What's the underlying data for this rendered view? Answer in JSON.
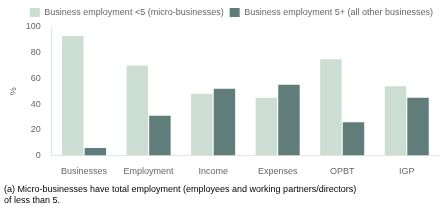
{
  "chart_data": {
    "type": "bar",
    "categories": [
      "Businesses",
      "Employment",
      "Income",
      "Expenses",
      "OPBT",
      "IGP"
    ],
    "series": [
      {
        "name": "Business employment <5 (micro-businesses)",
        "color": "#ccddd1",
        "values": [
          93,
          70,
          48,
          45,
          75,
          54
        ]
      },
      {
        "name": "Business employment 5+ (all other businesses)",
        "color": "#607d7b",
        "values": [
          6,
          31,
          52,
          55,
          26,
          45
        ]
      }
    ],
    "ylabel": "%",
    "ylim": [
      0,
      100
    ],
    "yticks": [
      0,
      20,
      40,
      60,
      80,
      100
    ],
    "grid": false,
    "legend": "upper right",
    "annotations": [
      "(a) Micro-businesses have total employment (employees and working partners/directors)\nof less than 5."
    ]
  }
}
